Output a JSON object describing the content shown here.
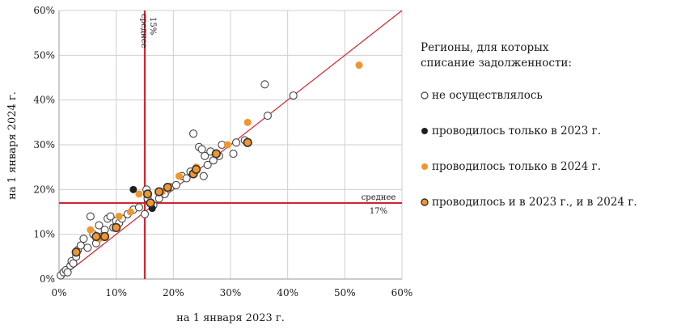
{
  "chart_data": {
    "type": "scatter",
    "xlabel": "на 1 января 2023 г.",
    "ylabel": "на 1 января 2024 г.",
    "xlim": [
      0,
      60
    ],
    "ylim": [
      0,
      60
    ],
    "x_ticks": [
      "0%",
      "10%",
      "20%",
      "30%",
      "40%",
      "50%",
      "60%"
    ],
    "y_ticks": [
      "0%",
      "10%",
      "20%",
      "30%",
      "40%",
      "50%",
      "60%"
    ],
    "grid": true,
    "diagonal": "y = x",
    "reference_lines": [
      {
        "axis": "x",
        "value": 15,
        "label_line1": "среднее",
        "label_line2": "15%"
      },
      {
        "axis": "y",
        "value": 17,
        "label_line1": "среднее",
        "label_line2": "17%"
      }
    ],
    "legend": {
      "title_line1": "Регионы, для которых",
      "title_line2": "списание задолженности:",
      "placement": "right"
    },
    "series": [
      {
        "name": "не осуществлялось",
        "style": "hollow",
        "fill": "#ffffff",
        "stroke": "#444444",
        "points": [
          [
            0.3,
            0.8
          ],
          [
            0.8,
            1.5
          ],
          [
            1.2,
            2.0
          ],
          [
            1.5,
            1.5
          ],
          [
            2.0,
            3.0
          ],
          [
            2.2,
            4.0
          ],
          [
            2.5,
            3.5
          ],
          [
            3.0,
            5.0
          ],
          [
            3.3,
            6.5
          ],
          [
            3.8,
            7.5
          ],
          [
            4.3,
            9.0
          ],
          [
            5.0,
            7.0
          ],
          [
            5.5,
            14.0
          ],
          [
            6.0,
            10.0
          ],
          [
            6.5,
            8.0
          ],
          [
            7.0,
            12.0
          ],
          [
            7.5,
            9.5
          ],
          [
            8.0,
            11.0
          ],
          [
            8.5,
            13.5
          ],
          [
            9.0,
            14.0
          ],
          [
            9.5,
            11.5
          ],
          [
            10.0,
            13.0
          ],
          [
            10.5,
            12.5
          ],
          [
            11.0,
            13.5
          ],
          [
            12.0,
            14.5
          ],
          [
            13.0,
            15.5
          ],
          [
            14.0,
            16.0
          ],
          [
            15.0,
            14.5
          ],
          [
            15.5,
            18.0
          ],
          [
            15.3,
            20.0
          ],
          [
            16.5,
            16.5
          ],
          [
            17.5,
            18.0
          ],
          [
            18.5,
            19.0
          ],
          [
            19.5,
            20.5
          ],
          [
            20.5,
            21.0
          ],
          [
            21.5,
            23.0
          ],
          [
            22.3,
            22.5
          ],
          [
            23.0,
            24.0
          ],
          [
            23.5,
            32.5
          ],
          [
            24.5,
            29.5
          ],
          [
            25.5,
            27.5
          ],
          [
            25.3,
            23.0
          ],
          [
            25.0,
            29.0
          ],
          [
            26.5,
            28.5
          ],
          [
            26.0,
            25.5
          ],
          [
            27.0,
            26.5
          ],
          [
            28.0,
            27.5
          ],
          [
            28.5,
            30.0
          ],
          [
            30.5,
            28.0
          ],
          [
            31.0,
            30.5
          ],
          [
            32.5,
            31.0
          ],
          [
            36.0,
            43.5
          ],
          [
            36.5,
            36.5
          ],
          [
            41.0,
            41.0
          ]
        ]
      },
      {
        "name": "проводилось только в 2023 г.",
        "style": "filled",
        "fill": "#1f1f1f",
        "stroke": "#1f1f1f",
        "points": [
          [
            13.0,
            20.0
          ],
          [
            16.3,
            15.8
          ],
          [
            33.0,
            30.5
          ]
        ]
      },
      {
        "name": "проводилось только в 2024 г.",
        "style": "filled",
        "fill": "#f0962e",
        "stroke": "#f0962e",
        "points": [
          [
            5.5,
            11.0
          ],
          [
            7.0,
            9.0
          ],
          [
            10.5,
            14.0
          ],
          [
            12.5,
            15.0
          ],
          [
            14.0,
            19.0
          ],
          [
            18.0,
            19.5
          ],
          [
            21.0,
            23.0
          ],
          [
            24.0,
            25.0
          ],
          [
            29.5,
            30.0
          ],
          [
            33.0,
            35.0
          ],
          [
            52.5,
            47.8
          ]
        ]
      },
      {
        "name": "проводилось и в 2023 г., и в 2024 г.",
        "style": "ringed",
        "fill": "#f0962e",
        "stroke": "#333333",
        "points": [
          [
            3.0,
            6.0
          ],
          [
            6.5,
            9.5
          ],
          [
            8.0,
            9.5
          ],
          [
            10.0,
            11.5
          ],
          [
            15.5,
            19.0
          ],
          [
            16.0,
            17.0
          ],
          [
            17.5,
            19.5
          ],
          [
            19.0,
            20.5
          ],
          [
            23.5,
            23.5
          ],
          [
            24.0,
            24.5
          ],
          [
            27.5,
            28.0
          ],
          [
            33.0,
            30.5
          ]
        ]
      }
    ]
  },
  "colors": {
    "reference_line": "#d1242f",
    "diagonal": "#d1242f",
    "grid": "#cfcfcf"
  }
}
